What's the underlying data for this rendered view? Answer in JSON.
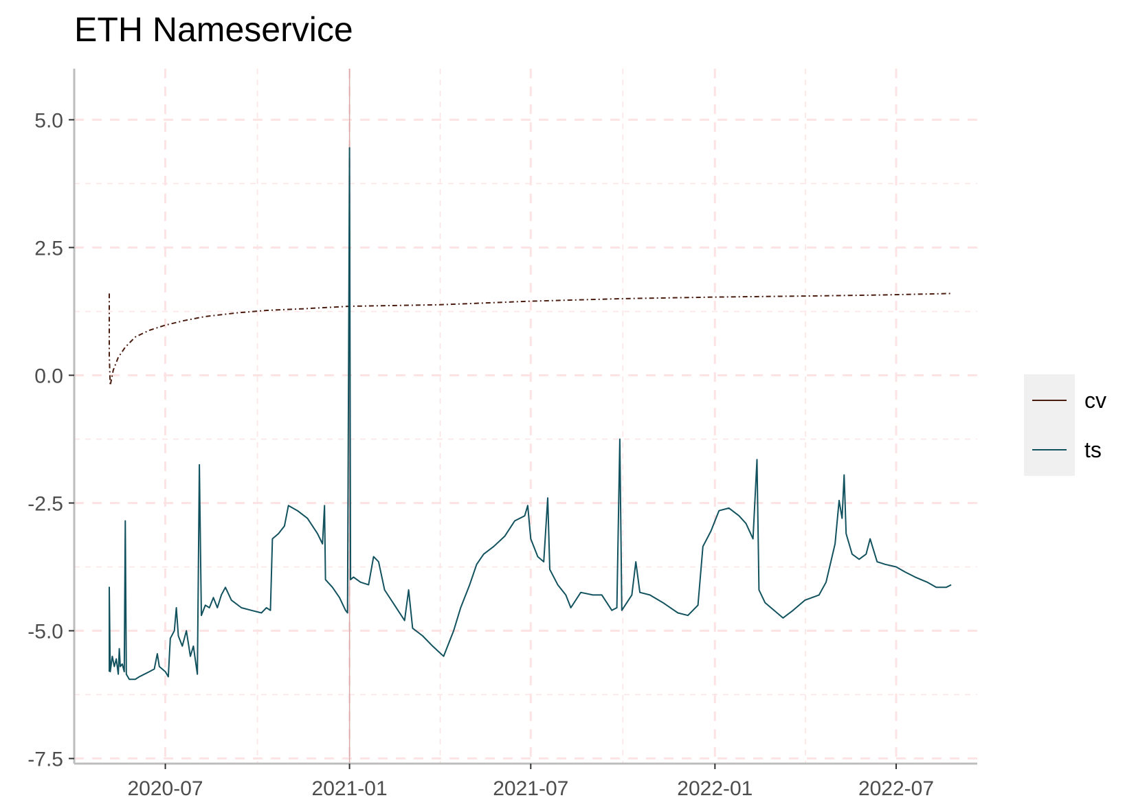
{
  "chart_data": {
    "type": "line",
    "title": "ETH Nameservice",
    "xlabel": "",
    "ylabel": "",
    "x_range": [
      "2020-04-01",
      "2022-09-20"
    ],
    "ylim": [
      -7.6,
      6.0
    ],
    "y_ticks": [
      5.0,
      2.5,
      0.0,
      -2.5,
      -5.0,
      -7.5
    ],
    "y_tick_labels": [
      "5.0",
      "2.5",
      "0.0",
      "-2.5",
      "-5.0",
      "-7.5"
    ],
    "x_ticks": [
      "2020-07-01",
      "2021-01-01",
      "2021-07-01",
      "2022-01-01",
      "2022-07-01"
    ],
    "x_tick_labels": [
      "2020-07",
      "2021-01",
      "2021-07",
      "2022-01",
      "2022-07"
    ],
    "grid": true,
    "legend_position": "right",
    "vline": {
      "x": "2021-01-01",
      "color": "#d8a8a8"
    },
    "series": [
      {
        "name": "cv",
        "color": "#4a1c0f",
        "style": "dashdot",
        "points": [
          [
            "2020-05-06",
            1.6
          ],
          [
            "2020-05-06",
            0.4
          ],
          [
            "2020-05-07",
            -0.2
          ],
          [
            "2020-05-10",
            0.1
          ],
          [
            "2020-05-15",
            0.35
          ],
          [
            "2020-05-22",
            0.55
          ],
          [
            "2020-06-01",
            0.75
          ],
          [
            "2020-06-15",
            0.88
          ],
          [
            "2020-07-01",
            0.98
          ],
          [
            "2020-07-20",
            1.07
          ],
          [
            "2020-08-10",
            1.15
          ],
          [
            "2020-09-10",
            1.22
          ],
          [
            "2020-10-10",
            1.27
          ],
          [
            "2020-11-15",
            1.3
          ],
          [
            "2021-01-01",
            1.35
          ],
          [
            "2021-04-01",
            1.38
          ],
          [
            "2021-07-01",
            1.45
          ],
          [
            "2021-10-01",
            1.5
          ],
          [
            "2022-01-01",
            1.53
          ],
          [
            "2022-04-01",
            1.55
          ],
          [
            "2022-06-15",
            1.57
          ],
          [
            "2022-08-25",
            1.6
          ]
        ]
      },
      {
        "name": "ts",
        "color": "#12525e",
        "style": "solid",
        "points": [
          [
            "2020-05-06",
            -5.8
          ],
          [
            "2020-05-06",
            -4.15
          ],
          [
            "2020-05-07",
            -5.8
          ],
          [
            "2020-05-09",
            -5.5
          ],
          [
            "2020-05-11",
            -5.7
          ],
          [
            "2020-05-13",
            -5.55
          ],
          [
            "2020-05-15",
            -5.85
          ],
          [
            "2020-05-16",
            -5.35
          ],
          [
            "2020-05-17",
            -5.7
          ],
          [
            "2020-05-19",
            -5.65
          ],
          [
            "2020-05-21",
            -5.8
          ],
          [
            "2020-05-22",
            -2.85
          ],
          [
            "2020-05-23",
            -5.85
          ],
          [
            "2020-05-26",
            -5.95
          ],
          [
            "2020-06-01",
            -5.95
          ],
          [
            "2020-06-05",
            -5.9
          ],
          [
            "2020-06-10",
            -5.85
          ],
          [
            "2020-06-15",
            -5.8
          ],
          [
            "2020-06-20",
            -5.75
          ],
          [
            "2020-06-23",
            -5.45
          ],
          [
            "2020-06-25",
            -5.7
          ],
          [
            "2020-07-01",
            -5.8
          ],
          [
            "2020-07-04",
            -5.9
          ],
          [
            "2020-07-06",
            -5.15
          ],
          [
            "2020-07-10",
            -5.0
          ],
          [
            "2020-07-12",
            -4.55
          ],
          [
            "2020-07-14",
            -5.1
          ],
          [
            "2020-07-18",
            -5.3
          ],
          [
            "2020-07-22",
            -5.0
          ],
          [
            "2020-07-26",
            -5.5
          ],
          [
            "2020-07-29",
            -5.3
          ],
          [
            "2020-08-02",
            -5.85
          ],
          [
            "2020-08-04",
            -1.75
          ],
          [
            "2020-08-06",
            -4.7
          ],
          [
            "2020-08-10",
            -4.5
          ],
          [
            "2020-08-14",
            -4.55
          ],
          [
            "2020-08-18",
            -4.35
          ],
          [
            "2020-08-22",
            -4.55
          ],
          [
            "2020-08-26",
            -4.3
          ],
          [
            "2020-08-30",
            -4.15
          ],
          [
            "2020-09-05",
            -4.4
          ],
          [
            "2020-09-15",
            -4.55
          ],
          [
            "2020-09-25",
            -4.6
          ],
          [
            "2020-10-05",
            -4.65
          ],
          [
            "2020-10-10",
            -4.55
          ],
          [
            "2020-10-14",
            -4.6
          ],
          [
            "2020-10-16",
            -3.2
          ],
          [
            "2020-10-22",
            -3.1
          ],
          [
            "2020-10-28",
            -2.95
          ],
          [
            "2020-11-01",
            -2.55
          ],
          [
            "2020-11-10",
            -2.65
          ],
          [
            "2020-11-20",
            -2.8
          ],
          [
            "2020-11-30",
            -3.1
          ],
          [
            "2020-12-05",
            -3.3
          ],
          [
            "2020-12-07",
            -2.55
          ],
          [
            "2020-12-08",
            -4.0
          ],
          [
            "2020-12-15",
            -4.15
          ],
          [
            "2020-12-22",
            -4.35
          ],
          [
            "2020-12-28",
            -4.6
          ],
          [
            "2020-12-30",
            -4.65
          ],
          [
            "2021-01-01",
            4.45
          ],
          [
            "2021-01-02",
            -4.0
          ],
          [
            "2021-01-05",
            -3.95
          ],
          [
            "2021-01-12",
            -4.05
          ],
          [
            "2021-01-20",
            -4.1
          ],
          [
            "2021-01-25",
            -3.55
          ],
          [
            "2021-01-30",
            -3.65
          ],
          [
            "2021-02-05",
            -4.2
          ],
          [
            "2021-02-15",
            -4.5
          ],
          [
            "2021-02-25",
            -4.8
          ],
          [
            "2021-03-01",
            -4.2
          ],
          [
            "2021-03-05",
            -4.95
          ],
          [
            "2021-03-15",
            -5.1
          ],
          [
            "2021-03-25",
            -5.3
          ],
          [
            "2021-04-05",
            -5.5
          ],
          [
            "2021-04-15",
            -5.0
          ],
          [
            "2021-04-22",
            -4.55
          ],
          [
            "2021-05-01",
            -4.1
          ],
          [
            "2021-05-08",
            -3.7
          ],
          [
            "2021-05-15",
            -3.5
          ],
          [
            "2021-05-25",
            -3.35
          ],
          [
            "2021-06-05",
            -3.15
          ],
          [
            "2021-06-15",
            -2.85
          ],
          [
            "2021-06-25",
            -2.75
          ],
          [
            "2021-06-28",
            -2.55
          ],
          [
            "2021-07-01",
            -3.2
          ],
          [
            "2021-07-08",
            -3.55
          ],
          [
            "2021-07-14",
            -3.65
          ],
          [
            "2021-07-18",
            -2.4
          ],
          [
            "2021-07-20",
            -3.8
          ],
          [
            "2021-07-28",
            -4.1
          ],
          [
            "2021-08-05",
            -4.3
          ],
          [
            "2021-08-10",
            -4.55
          ],
          [
            "2021-08-20",
            -4.25
          ],
          [
            "2021-09-01",
            -4.3
          ],
          [
            "2021-09-10",
            -4.3
          ],
          [
            "2021-09-20",
            -4.6
          ],
          [
            "2021-09-25",
            -4.55
          ],
          [
            "2021-09-28",
            -1.25
          ],
          [
            "2021-09-30",
            -4.6
          ],
          [
            "2021-10-10",
            -4.3
          ],
          [
            "2021-10-14",
            -3.65
          ],
          [
            "2021-10-18",
            -4.25
          ],
          [
            "2021-10-28",
            -4.3
          ],
          [
            "2021-11-10",
            -4.45
          ],
          [
            "2021-11-25",
            -4.65
          ],
          [
            "2021-12-05",
            -4.7
          ],
          [
            "2021-12-15",
            -4.5
          ],
          [
            "2021-12-20",
            -3.35
          ],
          [
            "2021-12-28",
            -3.05
          ],
          [
            "2022-01-05",
            -2.65
          ],
          [
            "2022-01-15",
            -2.6
          ],
          [
            "2022-01-25",
            -2.75
          ],
          [
            "2022-02-01",
            -2.9
          ],
          [
            "2022-02-08",
            -3.2
          ],
          [
            "2022-02-12",
            -1.65
          ],
          [
            "2022-02-14",
            -4.2
          ],
          [
            "2022-02-20",
            -4.45
          ],
          [
            "2022-03-01",
            -4.6
          ],
          [
            "2022-03-10",
            -4.75
          ],
          [
            "2022-03-20",
            -4.6
          ],
          [
            "2022-04-01",
            -4.4
          ],
          [
            "2022-04-15",
            -4.3
          ],
          [
            "2022-04-22",
            -4.05
          ],
          [
            "2022-05-01",
            -3.3
          ],
          [
            "2022-05-05",
            -2.45
          ],
          [
            "2022-05-08",
            -2.8
          ],
          [
            "2022-05-10",
            -1.95
          ],
          [
            "2022-05-12",
            -3.1
          ],
          [
            "2022-05-18",
            -3.5
          ],
          [
            "2022-05-25",
            -3.6
          ],
          [
            "2022-06-01",
            -3.5
          ],
          [
            "2022-06-05",
            -3.2
          ],
          [
            "2022-06-12",
            -3.65
          ],
          [
            "2022-06-20",
            -3.7
          ],
          [
            "2022-07-01",
            -3.75
          ],
          [
            "2022-07-10",
            -3.85
          ],
          [
            "2022-07-20",
            -3.95
          ],
          [
            "2022-08-01",
            -4.05
          ],
          [
            "2022-08-10",
            -4.15
          ],
          [
            "2022-08-20",
            -4.15
          ],
          [
            "2022-08-25",
            -4.1
          ]
        ]
      }
    ],
    "colors": {
      "grid": "#fde3e3",
      "axis": "#bdbdbd",
      "legend_bg": "#f0f0f0"
    }
  }
}
